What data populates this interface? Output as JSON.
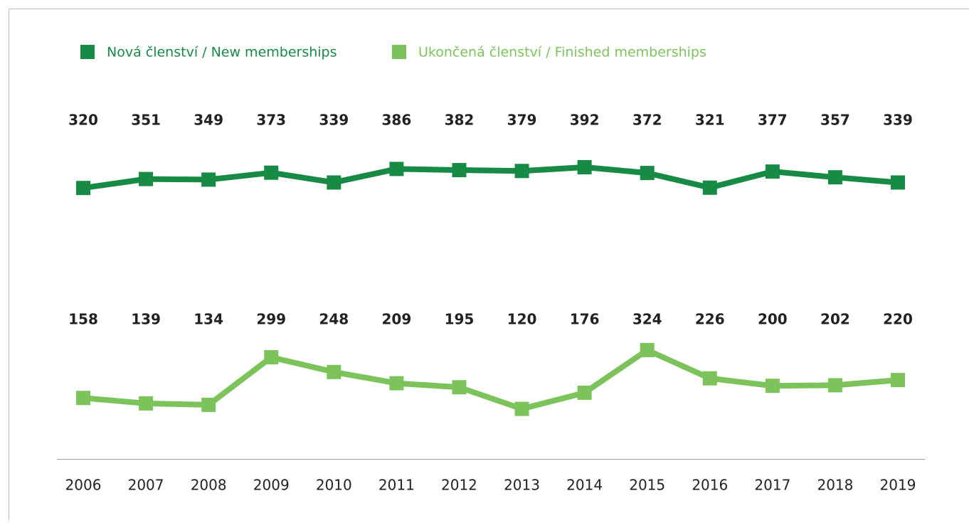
{
  "chart_data": {
    "type": "line",
    "categories": [
      "2006",
      "2007",
      "2008",
      "2009",
      "2010",
      "2011",
      "2012",
      "2013",
      "2014",
      "2015",
      "2016",
      "2017",
      "2018",
      "2019"
    ],
    "series": [
      {
        "name": "Nová členství / New memberships",
        "color": "#178a45",
        "values": [
          320,
          351,
          349,
          373,
          339,
          386,
          382,
          379,
          392,
          372,
          321,
          377,
          357,
          339
        ]
      },
      {
        "name": "Ukončená členství / Finished memberships",
        "color": "#7dc35b",
        "values": [
          158,
          139,
          134,
          299,
          248,
          209,
          195,
          120,
          176,
          324,
          226,
          200,
          202,
          220
        ]
      }
    ],
    "legend": "top-left"
  }
}
